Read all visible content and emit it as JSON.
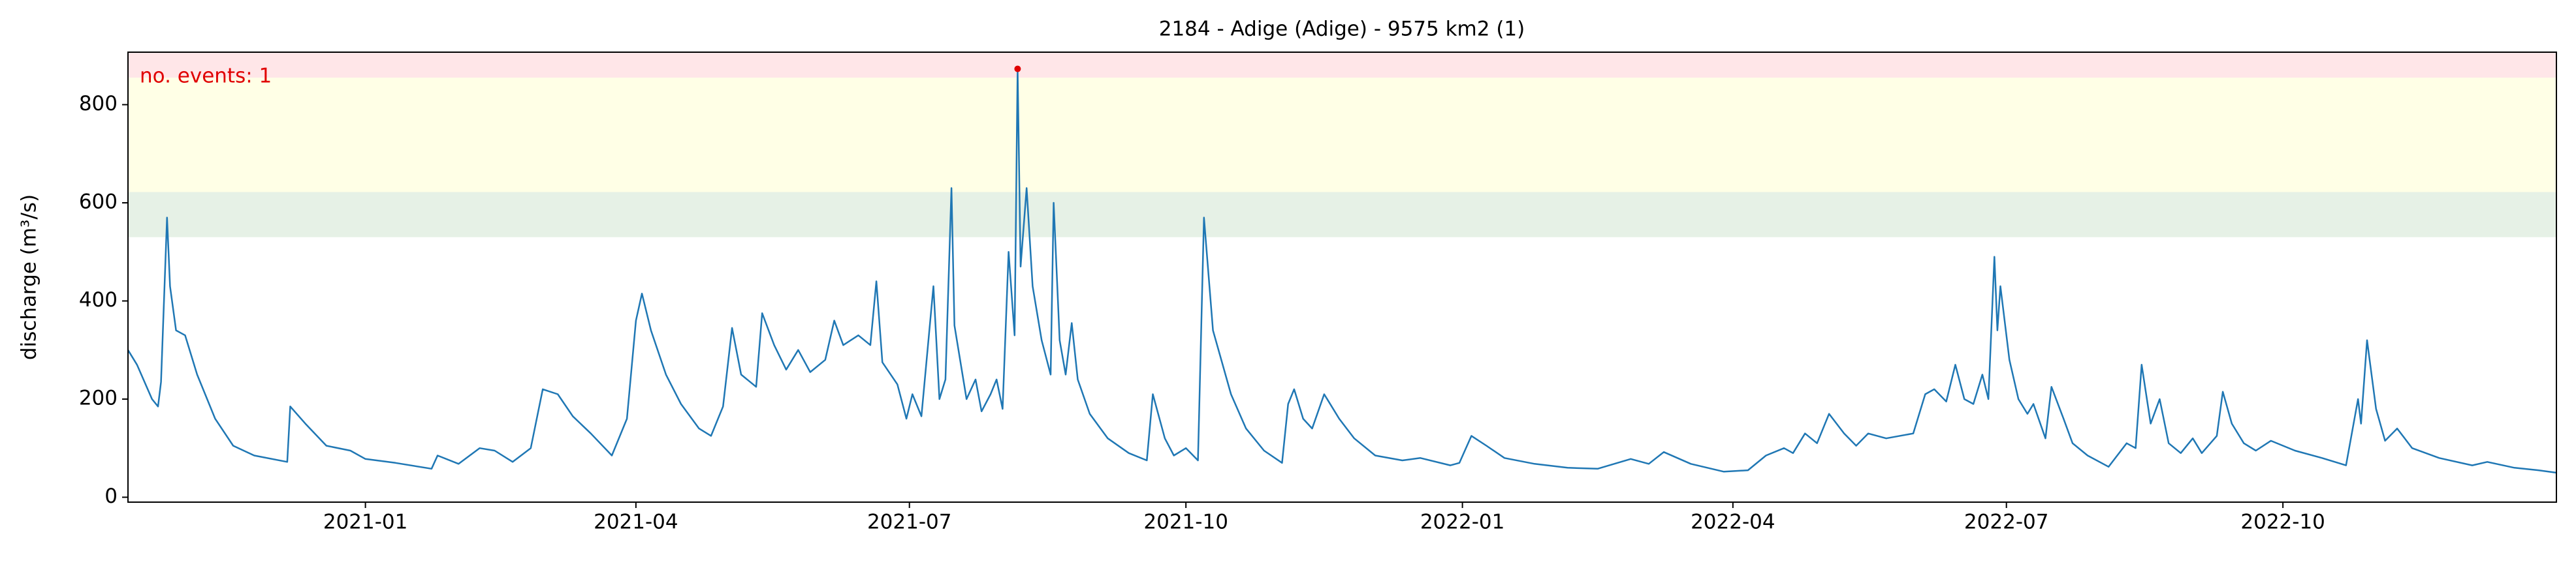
{
  "chart_data": {
    "type": "line",
    "title": "2184 - Adige (Adige) - 9575 km2 (1)",
    "y_label": "discharge (m³/s)",
    "annotation": "no. events: 1",
    "annotation_color": "#e00000",
    "color": "#1f77b4",
    "x": [
      "2020-10-14",
      "2020-10-17",
      "2020-10-22",
      "2020-10-24",
      "2020-10-25",
      "2020-10-27",
      "2020-10-28",
      "2020-10-30",
      "2020-11-02",
      "2020-11-06",
      "2020-11-12",
      "2020-11-18",
      "2020-11-25",
      "2020-12-06",
      "2020-12-07",
      "2020-12-12",
      "2020-12-19",
      "2020-12-27",
      "2021-01-01",
      "2021-01-11",
      "2021-01-23",
      "2021-01-25",
      "2021-02-01",
      "2021-02-08",
      "2021-02-13",
      "2021-02-19",
      "2021-02-25",
      "2021-03-01",
      "2021-03-06",
      "2021-03-11",
      "2021-03-17",
      "2021-03-24",
      "2021-03-29",
      "2021-04-01",
      "2021-04-03",
      "2021-04-06",
      "2021-04-11",
      "2021-04-16",
      "2021-04-22",
      "2021-04-26",
      "2021-04-30",
      "2021-05-03",
      "2021-05-06",
      "2021-05-11",
      "2021-05-13",
      "2021-05-17",
      "2021-05-21",
      "2021-05-25",
      "2021-05-29",
      "2021-06-03",
      "2021-06-06",
      "2021-06-09",
      "2021-06-14",
      "2021-06-18",
      "2021-06-20",
      "2021-06-22",
      "2021-06-27",
      "2021-06-30",
      "2021-07-02",
      "2021-07-05",
      "2021-07-09",
      "2021-07-11",
      "2021-07-13",
      "2021-07-15",
      "2021-07-16",
      "2021-07-20",
      "2021-07-23",
      "2021-07-25",
      "2021-07-28",
      "2021-07-30",
      "2021-08-01",
      "2021-08-03",
      "2021-08-05",
      "2021-08-06",
      "2021-08-07",
      "2021-08-09",
      "2021-08-11",
      "2021-08-14",
      "2021-08-17",
      "2021-08-18",
      "2021-08-20",
      "2021-08-22",
      "2021-08-24",
      "2021-08-26",
      "2021-08-30",
      "2021-09-05",
      "2021-09-12",
      "2021-09-18",
      "2021-09-20",
      "2021-09-24",
      "2021-09-27",
      "2021-10-01",
      "2021-10-05",
      "2021-10-07",
      "2021-10-10",
      "2021-10-16",
      "2021-10-21",
      "2021-10-27",
      "2021-11-02",
      "2021-11-04",
      "2021-11-06",
      "2021-11-09",
      "2021-11-12",
      "2021-11-16",
      "2021-11-21",
      "2021-11-26",
      "2021-12-03",
      "2021-12-12",
      "2021-12-18",
      "2021-12-28",
      "2021-12-31",
      "2022-01-04",
      "2022-01-09",
      "2022-01-15",
      "2022-01-25",
      "2022-02-05",
      "2022-02-15",
      "2022-02-26",
      "2022-03-04",
      "2022-03-09",
      "2022-03-18",
      "2022-03-29",
      "2022-04-06",
      "2022-04-12",
      "2022-04-18",
      "2022-04-21",
      "2022-04-25",
      "2022-04-29",
      "2022-05-03",
      "2022-05-08",
      "2022-05-12",
      "2022-05-16",
      "2022-05-22",
      "2022-05-31",
      "2022-06-04",
      "2022-06-07",
      "2022-06-11",
      "2022-06-14",
      "2022-06-17",
      "2022-06-20",
      "2022-06-23",
      "2022-06-25",
      "2022-06-27",
      "2022-06-28",
      "2022-06-29",
      "2022-07-02",
      "2022-07-05",
      "2022-07-08",
      "2022-07-10",
      "2022-07-14",
      "2022-07-16",
      "2022-07-20",
      "2022-07-23",
      "2022-07-28",
      "2022-08-04",
      "2022-08-10",
      "2022-08-13",
      "2022-08-15",
      "2022-08-18",
      "2022-08-21",
      "2022-08-24",
      "2022-08-28",
      "2022-09-01",
      "2022-09-04",
      "2022-09-09",
      "2022-09-11",
      "2022-09-14",
      "2022-09-18",
      "2022-09-22",
      "2022-09-27",
      "2022-10-05",
      "2022-10-14",
      "2022-10-22",
      "2022-10-26",
      "2022-10-27",
      "2022-10-29",
      "2022-11-01",
      "2022-11-04",
      "2022-11-08",
      "2022-11-13",
      "2022-11-22",
      "2022-12-03",
      "2022-12-08",
      "2022-12-17",
      "2022-12-25",
      "2022-12-31"
    ],
    "values": [
      300,
      270,
      200,
      185,
      235,
      570,
      430,
      340,
      330,
      250,
      160,
      105,
      85,
      72,
      185,
      150,
      105,
      95,
      78,
      70,
      58,
      85,
      68,
      100,
      95,
      72,
      100,
      220,
      210,
      165,
      130,
      85,
      160,
      360,
      415,
      340,
      250,
      190,
      140,
      125,
      185,
      345,
      250,
      225,
      375,
      310,
      260,
      300,
      255,
      280,
      360,
      310,
      330,
      310,
      440,
      275,
      230,
      160,
      210,
      165,
      430,
      200,
      240,
      630,
      350,
      200,
      240,
      175,
      210,
      240,
      180,
      500,
      330,
      873,
      470,
      630,
      430,
      320,
      250,
      600,
      320,
      250,
      355,
      240,
      170,
      120,
      90,
      75,
      210,
      120,
      85,
      100,
      75,
      570,
      340,
      210,
      140,
      95,
      70,
      190,
      220,
      160,
      140,
      210,
      160,
      120,
      85,
      75,
      80,
      65,
      70,
      125,
      105,
      80,
      68,
      60,
      58,
      78,
      68,
      92,
      68,
      52,
      55,
      85,
      100,
      90,
      130,
      110,
      170,
      130,
      105,
      130,
      120,
      130,
      210,
      220,
      195,
      270,
      200,
      190,
      250,
      200,
      490,
      340,
      430,
      280,
      200,
      170,
      190,
      120,
      225,
      160,
      110,
      85,
      62,
      110,
      100,
      270,
      150,
      200,
      110,
      90,
      120,
      90,
      125,
      215,
      150,
      110,
      95,
      115,
      95,
      80,
      65,
      200,
      150,
      320,
      180,
      115,
      140,
      100,
      80,
      65,
      72,
      60,
      55,
      50
    ],
    "events": {
      "x": [
        "2021-08-06"
      ],
      "values": [
        873
      ],
      "color": "#e00000"
    },
    "bands": [
      {
        "y0": 530,
        "y1": 622,
        "color": "#e6f1e6"
      },
      {
        "y0": 622,
        "y1": 855,
        "color": "#ffffe6"
      },
      {
        "y0": 855,
        "y1": 907,
        "color": "#ffe6e8"
      }
    ],
    "xlim": [
      "2020-10-14",
      "2022-12-31"
    ],
    "xticks": [
      {
        "value": "2021-01-01",
        "label": "2021-01"
      },
      {
        "value": "2021-04-01",
        "label": "2021-04"
      },
      {
        "value": "2021-07-01",
        "label": "2021-07"
      },
      {
        "value": "2021-10-01",
        "label": "2021-10"
      },
      {
        "value": "2022-01-01",
        "label": "2022-01"
      },
      {
        "value": "2022-04-01",
        "label": "2022-04"
      },
      {
        "value": "2022-07-01",
        "label": "2022-07"
      },
      {
        "value": "2022-10-01",
        "label": "2022-10"
      }
    ],
    "ylim": [
      -10,
      907
    ],
    "yticks": [
      0,
      200,
      400,
      600,
      800
    ],
    "grid": false
  }
}
